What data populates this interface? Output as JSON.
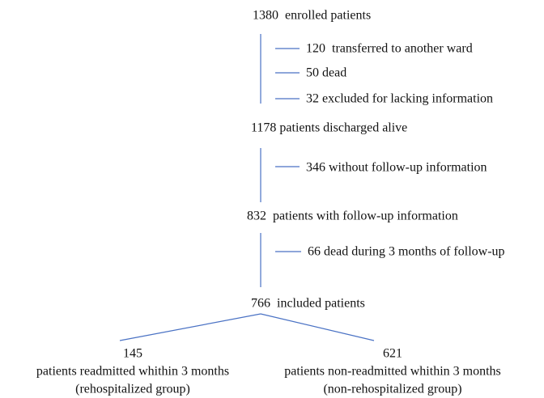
{
  "nodes": [
    {
      "label": "1380  enrolled patients",
      "exclusions": [
        "120  transferred to another ward",
        "50 dead",
        "32 excluded for lacking information"
      ]
    },
    {
      "label": "1178 patients discharged alive",
      "exclusions": [
        "346 without follow-up information"
      ]
    },
    {
      "label": "832  patients with follow-up information",
      "exclusions": [
        "66 dead during 3 months of follow-up"
      ]
    },
    {
      "label": "766  included patients"
    }
  ],
  "groups": [
    {
      "count": "145",
      "label": "patients readmitted whithin 3 months",
      "group": "(rehospitalized group)"
    },
    {
      "count": "621",
      "label": "patients non-readmitted whithin 3 months",
      "group": "(non-rehospitalized group)"
    }
  ]
}
